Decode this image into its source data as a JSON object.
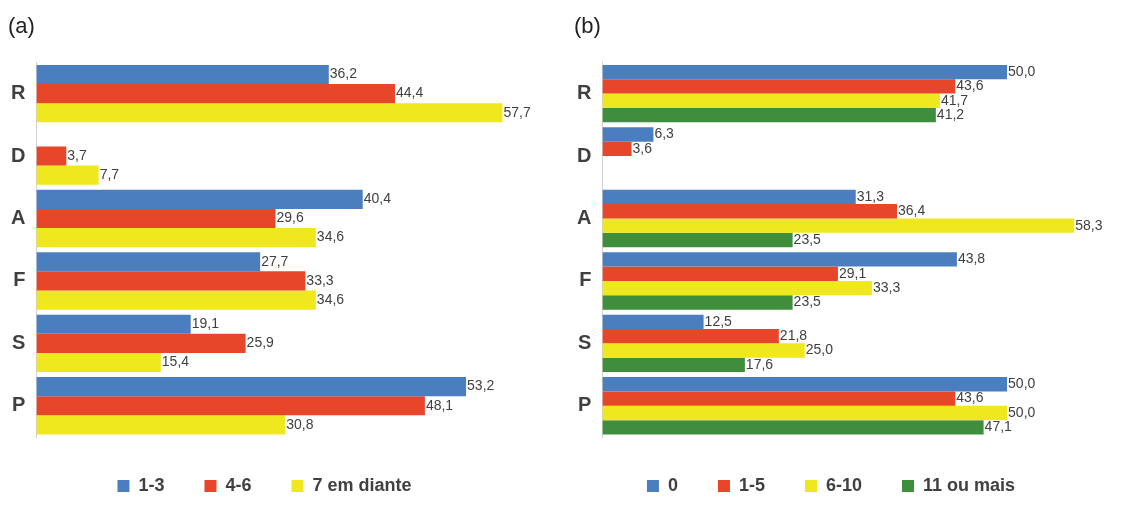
{
  "chart_data": [
    {
      "type": "bar",
      "orientation": "horizontal",
      "title": "(a)",
      "categories": [
        "R",
        "D",
        "A",
        "F",
        "S",
        "P"
      ],
      "series": [
        {
          "name": "1-3",
          "color": "#4a7ebf",
          "values": [
            36.2,
            null,
            40.4,
            27.7,
            19.1,
            53.2
          ],
          "value_labels": [
            "36,2",
            null,
            "40,4",
            "27,7",
            "19,1",
            "53,2"
          ]
        },
        {
          "name": "4-6",
          "color": "#e8462a",
          "values": [
            44.4,
            3.7,
            29.6,
            33.3,
            25.9,
            48.1
          ],
          "value_labels": [
            "44,4",
            "3,7",
            "29,6",
            "33,3",
            "25,9",
            "48,1"
          ]
        },
        {
          "name": "7 em diante",
          "color": "#f0e81e",
          "values": [
            57.7,
            7.7,
            34.6,
            34.6,
            15.4,
            30.8
          ],
          "value_labels": [
            "57,7",
            "7,7",
            "34,6",
            "34,6",
            "15,4",
            "30,8"
          ]
        }
      ],
      "legend": "bottom",
      "grid": false,
      "tick_labels": "y"
    },
    {
      "type": "bar",
      "orientation": "horizontal",
      "title": "(b)",
      "categories": [
        "R",
        "D",
        "A",
        "F",
        "S",
        "P"
      ],
      "series": [
        {
          "name": "0",
          "color": "#4a7ebf",
          "values": [
            50.0,
            6.3,
            31.3,
            43.8,
            12.5,
            50.0
          ],
          "value_labels": [
            "50,0",
            "6,3",
            "31,3",
            "43,8",
            "12,5",
            "50,0"
          ]
        },
        {
          "name": "1-5",
          "color": "#e8462a",
          "values": [
            43.6,
            3.6,
            36.4,
            29.1,
            21.8,
            43.6
          ],
          "value_labels": [
            "43,6",
            "3,6",
            "36,4",
            "29,1",
            "21,8",
            "43,6"
          ]
        },
        {
          "name": "6-10",
          "color": "#f0e81e",
          "values": [
            41.7,
            null,
            58.3,
            33.3,
            25.0,
            50.0
          ],
          "value_labels": [
            "41,7",
            null,
            "58,3",
            "33,3",
            "25,0",
            "50,0"
          ]
        },
        {
          "name": "11 ou mais",
          "color": "#3e8e3c",
          "values": [
            41.2,
            null,
            23.5,
            23.5,
            17.6,
            47.1
          ],
          "value_labels": [
            "41,2",
            null,
            "23,5",
            "23,5",
            "17,6",
            "47,1"
          ]
        }
      ],
      "legend": "bottom",
      "grid": false,
      "tick_labels": "y"
    }
  ]
}
